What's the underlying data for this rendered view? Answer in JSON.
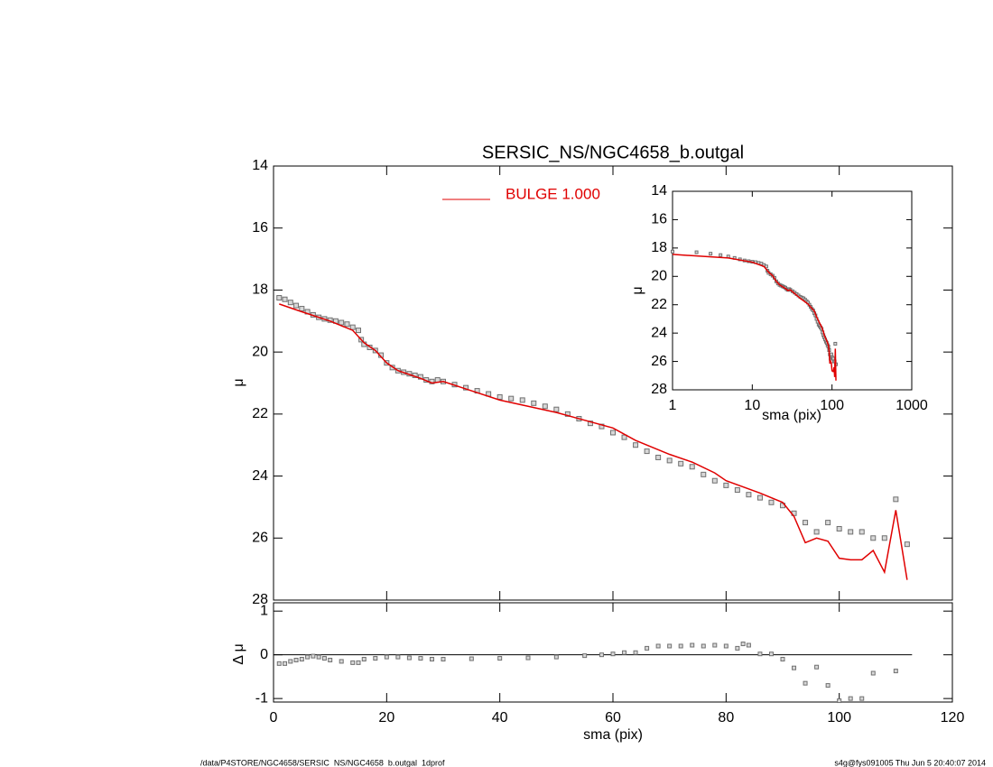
{
  "chart_data": [
    {
      "type": "scatter",
      "title": "SERSIC_NS/NGC4658_b.outgal",
      "ylabel": "μ",
      "xlim": [
        0,
        120
      ],
      "xticks": [
        0,
        20,
        40,
        60,
        80,
        100,
        120
      ],
      "ylim": [
        28,
        14
      ],
      "yticks": [
        14,
        16,
        18,
        20,
        22,
        24,
        26,
        28
      ],
      "series": [
        {
          "marker": "square",
          "color": "#707070",
          "x": [
            1,
            2,
            3,
            4,
            5,
            6,
            7,
            8,
            9,
            10,
            11,
            12,
            13,
            14,
            15,
            15.5,
            16,
            17,
            18,
            19,
            20,
            21,
            22,
            23,
            24,
            25,
            26,
            27,
            28,
            29,
            30,
            32,
            34,
            36,
            38,
            40,
            42,
            44,
            46,
            48,
            50,
            52,
            54,
            56,
            58,
            60,
            62,
            64,
            66,
            68,
            70,
            72,
            74,
            76,
            78,
            80,
            82,
            84,
            86,
            88,
            90,
            92,
            94,
            96,
            98,
            100,
            102,
            104,
            106,
            108,
            110,
            112
          ],
          "values": [
            18.25,
            18.3,
            18.4,
            18.5,
            18.6,
            18.7,
            18.8,
            18.88,
            18.93,
            18.97,
            19.0,
            19.05,
            19.1,
            19.2,
            19.3,
            19.6,
            19.75,
            19.85,
            19.95,
            20.1,
            20.35,
            20.5,
            20.6,
            20.65,
            20.7,
            20.75,
            20.8,
            20.9,
            20.95,
            20.9,
            20.95,
            21.05,
            21.15,
            21.25,
            21.35,
            21.45,
            21.5,
            21.55,
            21.65,
            21.75,
            21.85,
            22.0,
            22.15,
            22.3,
            22.4,
            22.6,
            22.75,
            23.0,
            23.2,
            23.4,
            23.5,
            23.6,
            23.7,
            23.95,
            24.15,
            24.3,
            24.45,
            24.6,
            24.7,
            24.85,
            24.95,
            25.2,
            25.5,
            25.8,
            25.5,
            25.7,
            25.8,
            25.8,
            26.0,
            26.0,
            24.75,
            26.2
          ]
        },
        {
          "name": "BULGE  1.000",
          "marker": "line",
          "color": "#e00000",
          "x": [
            1,
            5,
            10,
            14,
            15,
            16,
            18,
            20,
            22,
            26,
            28,
            30,
            40,
            50,
            60,
            64,
            70,
            74,
            78,
            80,
            86,
            90,
            92,
            94,
            96,
            98,
            100,
            102,
            104,
            106,
            108,
            110,
            112
          ],
          "values": [
            18.45,
            18.7,
            19.0,
            19.3,
            19.5,
            19.7,
            19.95,
            20.35,
            20.6,
            20.85,
            21.0,
            20.95,
            21.55,
            21.95,
            22.45,
            22.85,
            23.3,
            23.55,
            23.9,
            24.15,
            24.55,
            24.85,
            25.3,
            26.15,
            26.0,
            26.1,
            26.65,
            26.7,
            26.7,
            26.4,
            27.1,
            25.1,
            27.35
          ]
        }
      ],
      "inset": {
        "log_x": true,
        "xlabel": "sma (pix)",
        "ylabel": "μ",
        "xlim": [
          1,
          1000
        ],
        "xticks": [
          1,
          10,
          100,
          1000
        ],
        "ylim": [
          28,
          14
        ],
        "yticks": [
          14,
          16,
          18,
          20,
          22,
          24,
          26,
          28
        ]
      }
    },
    {
      "type": "scatter",
      "xlabel": "sma (pix)",
      "ylabel": "Δ μ",
      "xlim": [
        0,
        120
      ],
      "xticks": [
        0,
        20,
        40,
        60,
        80,
        100,
        120
      ],
      "ylim": [
        -1.08,
        1.19
      ],
      "yticks": [
        -1,
        0,
        1
      ],
      "zero_line": true,
      "series": [
        {
          "marker": "square",
          "color": "#707070",
          "x": [
            1,
            2,
            3,
            4,
            5,
            6,
            7,
            8,
            9,
            10,
            12,
            14,
            15,
            16,
            18,
            20,
            22,
            24,
            26,
            28,
            30,
            35,
            40,
            45,
            50,
            55,
            58,
            60,
            62,
            64,
            66,
            68,
            70,
            72,
            74,
            76,
            78,
            80,
            82,
            83,
            84,
            86,
            88,
            90,
            92,
            94,
            96,
            98,
            100,
            102,
            104,
            106,
            110
          ],
          "values": [
            -0.2,
            -0.2,
            -0.15,
            -0.12,
            -0.1,
            -0.05,
            -0.03,
            -0.05,
            -0.08,
            -0.12,
            -0.15,
            -0.18,
            -0.18,
            -0.1,
            -0.08,
            -0.05,
            -0.05,
            -0.07,
            -0.08,
            -0.1,
            -0.1,
            -0.09,
            -0.08,
            -0.07,
            -0.05,
            -0.02,
            0.0,
            0.02,
            0.05,
            0.05,
            0.15,
            0.2,
            0.2,
            0.2,
            0.22,
            0.2,
            0.22,
            0.2,
            0.15,
            0.25,
            0.22,
            0.02,
            0.02,
            -0.1,
            -0.3,
            -0.65,
            -0.28,
            -0.7,
            -1.05,
            -1.0,
            -1.0,
            -0.42,
            -0.37
          ]
        }
      ]
    }
  ],
  "footer": {
    "left": "/data/P4STORE/NGC4658/SERSIC_NS/NGC4658_b.outgal_1dprof",
    "right": "s4g@fys091005  Thu Jun  5 20:40:07 2014"
  }
}
